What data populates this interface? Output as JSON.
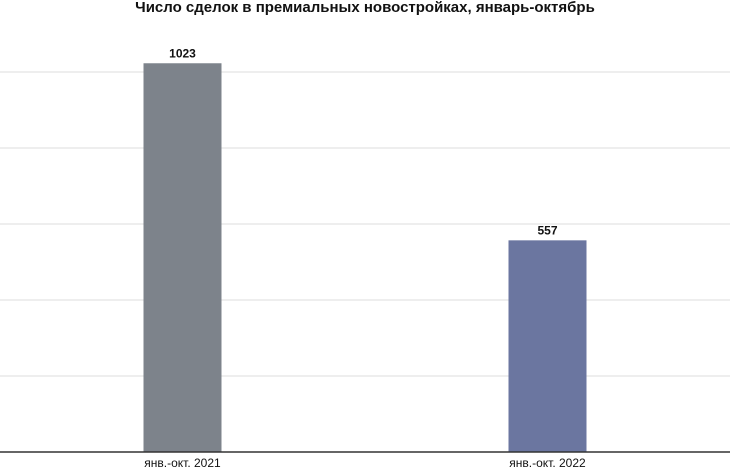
{
  "chart_data": {
    "type": "bar",
    "title": "Число сделок в премиальных новостройках, январь-октябрь",
    "categories": [
      "янв.-окт. 2021",
      "янв.-окт. 2022"
    ],
    "values": [
      1023,
      557
    ],
    "colors": [
      "#7d838b",
      "#6b76a0"
    ],
    "ylim": [
      0,
      1100
    ],
    "yticks": [
      0,
      200,
      400,
      600,
      800,
      1000
    ],
    "grid": true
  }
}
